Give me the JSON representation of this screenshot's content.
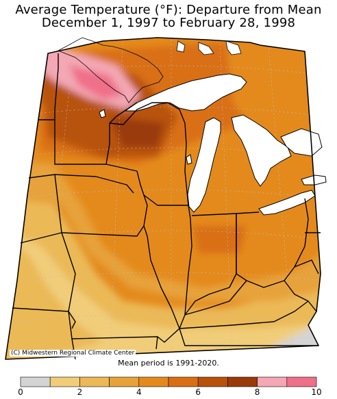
{
  "header": {
    "title_line1": "Average Temperature (°F): Departure from Mean",
    "title_line2": "December 1, 1997 to February 28, 1998"
  },
  "credit": "(C) Midwestern Regional Climate Center",
  "mean_period": "Mean period is 1991-2020.",
  "legend": {
    "colors": [
      "#d4d4d4",
      "#f1cd7a",
      "#ebb956",
      "#e7a23a",
      "#e48a1c",
      "#d96f12",
      "#b8520a",
      "#9a3b07",
      "#f4a7b4",
      "#ef7089"
    ],
    "ticks": [
      "0",
      "2",
      "4",
      "6",
      "8",
      "10"
    ]
  },
  "colors": {
    "water": "#ffffff",
    "border": "#000000"
  }
}
